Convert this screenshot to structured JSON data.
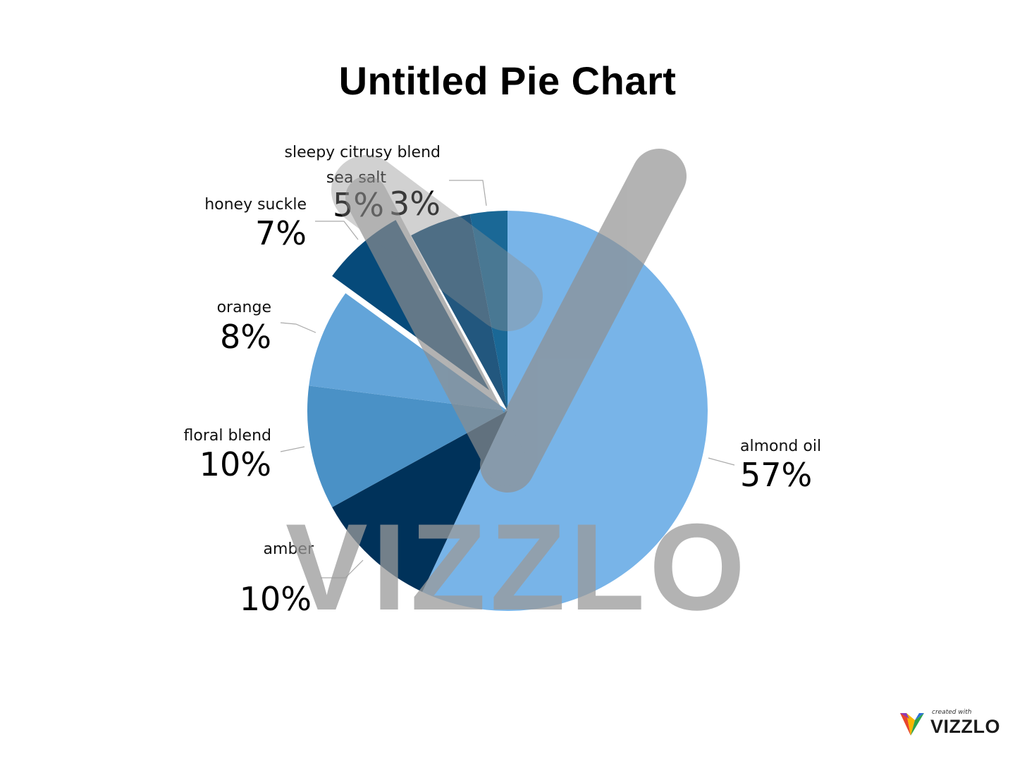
{
  "chart_data": {
    "type": "pie",
    "title": "Untitled Pie Chart",
    "slices": [
      {
        "label": "almond oil",
        "value": 57,
        "display": "57%",
        "color": "#78b4e8",
        "exploded": false
      },
      {
        "label": "amber",
        "value": 10,
        "display": "10%",
        "color": "#00325a",
        "exploded": false
      },
      {
        "label": "floral blend",
        "value": 10,
        "display": "10%",
        "color": "#4a91c6",
        "exploded": false
      },
      {
        "label": "orange",
        "value": 8,
        "display": "8%",
        "color": "#62a4d9",
        "exploded": false
      },
      {
        "label": "honey suckle",
        "value": 7,
        "display": "7%",
        "color": "#064a7a",
        "exploded": true
      },
      {
        "label": "sea salt",
        "value": 5,
        "display": "5%",
        "color": "#22577e",
        "exploded": false
      },
      {
        "label": "sleepy citrusy blend",
        "value": 3,
        "display": "3%",
        "color": "#1a6896",
        "exploded": false
      }
    ]
  },
  "watermark": {
    "text": "VIZZLO"
  },
  "branding": {
    "created_with": "created with",
    "name": "VIZZLO"
  }
}
